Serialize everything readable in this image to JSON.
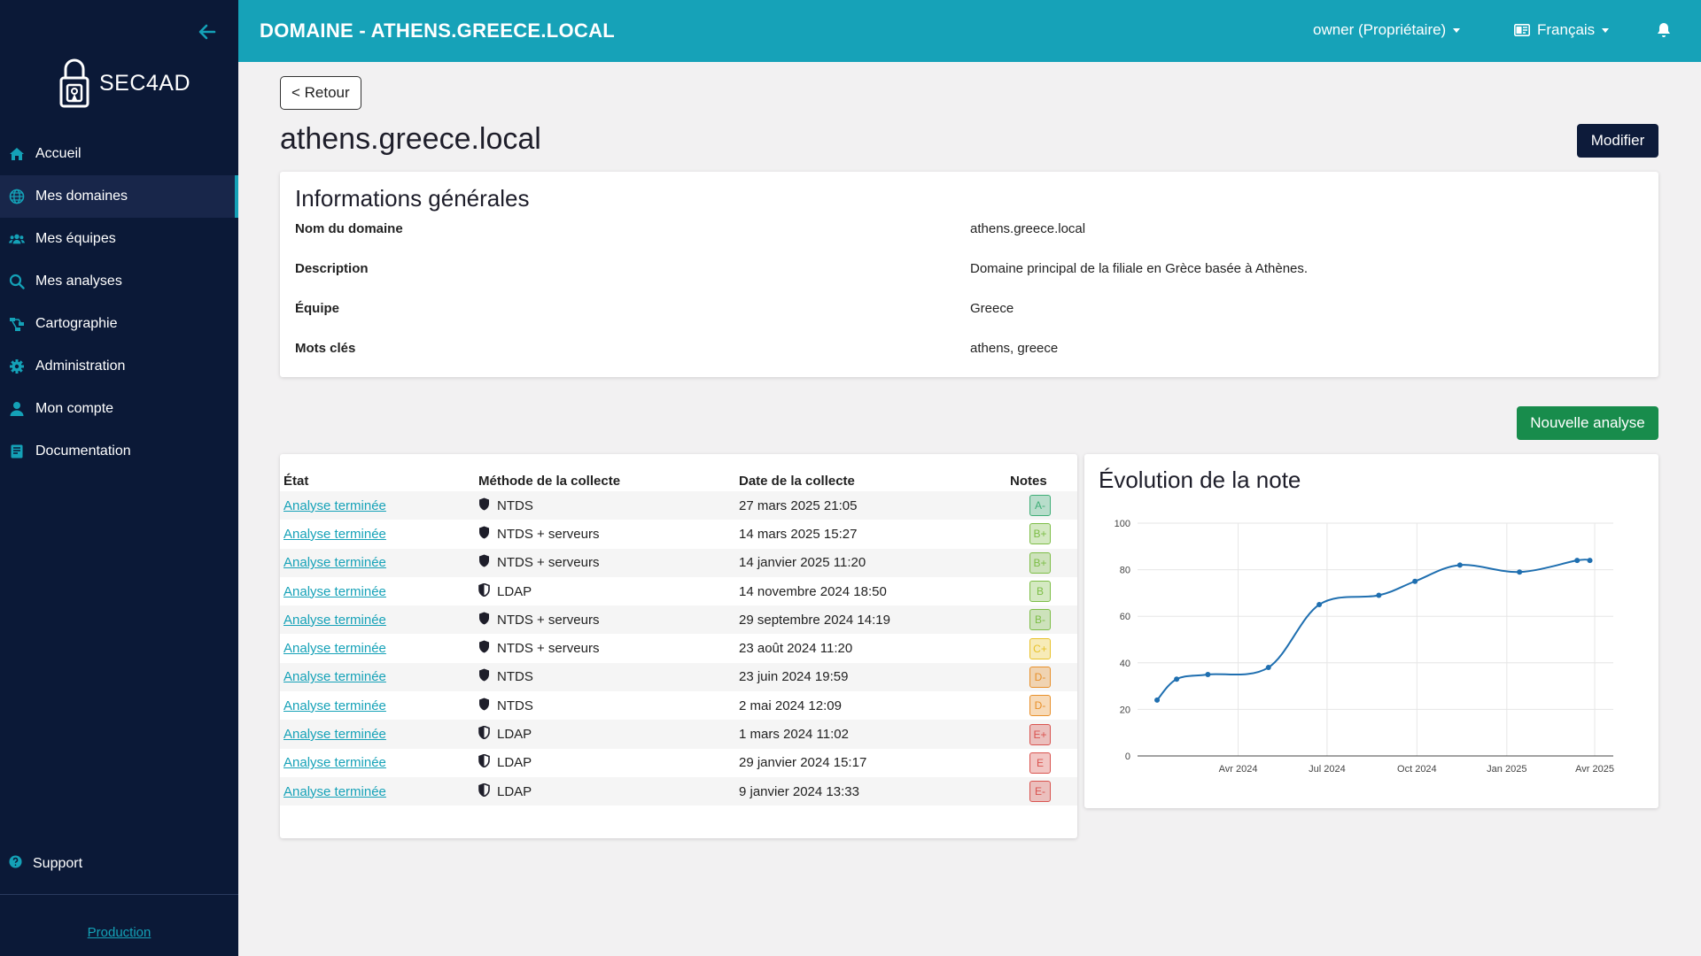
{
  "sidebar": {
    "logo_text": "SEC4AD",
    "items": [
      {
        "label": "Accueil",
        "icon": "home-icon"
      },
      {
        "label": "Mes domaines",
        "icon": "globe-icon",
        "active": true
      },
      {
        "label": "Mes équipes",
        "icon": "users-icon"
      },
      {
        "label": "Mes analyses",
        "icon": "search-icon"
      },
      {
        "label": "Cartographie",
        "icon": "sitemap-icon"
      },
      {
        "label": "Administration",
        "icon": "gear-icon"
      },
      {
        "label": "Mon compte",
        "icon": "user-icon"
      },
      {
        "label": "Documentation",
        "icon": "book-icon"
      }
    ],
    "support_label": "Support",
    "environment_label": "Production"
  },
  "topbar": {
    "title": "DOMAINE - ATHENS.GREECE.LOCAL",
    "user_label": "owner (Propriétaire)",
    "language_label": "Français"
  },
  "main": {
    "back_label": "< Retour",
    "page_title": "athens.greece.local",
    "edit_label": "Modifier",
    "new_analysis_label": "Nouvelle analyse"
  },
  "info": {
    "title": "Informations générales",
    "rows": [
      {
        "label": "Nom du domaine",
        "value": "athens.greece.local"
      },
      {
        "label": "Description",
        "value": "Domaine principal de la filiale en Grèce basée à Athènes."
      },
      {
        "label": "Équipe",
        "value": "Greece"
      },
      {
        "label": "Mots clés",
        "value": "athens, greece"
      }
    ]
  },
  "table": {
    "headers": [
      "État",
      "Méthode de la collecte",
      "Date de la collecte",
      "Notes"
    ],
    "rows": [
      {
        "state": "Analyse terminée",
        "method": "NTDS",
        "shield": "solid",
        "date": "27 mars 2025 21:05",
        "grade": "A-",
        "grade_color": "#3fae77"
      },
      {
        "state": "Analyse terminée",
        "method": "NTDS + serveurs",
        "shield": "solid",
        "date": "14 mars 2025 15:27",
        "grade": "B+",
        "grade_color": "#7dbd47"
      },
      {
        "state": "Analyse terminée",
        "method": "NTDS + serveurs",
        "shield": "solid",
        "date": "14 janvier 2025 11:20",
        "grade": "B+",
        "grade_color": "#7dbd47"
      },
      {
        "state": "Analyse terminée",
        "method": "LDAP",
        "shield": "half",
        "date": "14 novembre 2024 18:50",
        "grade": "B",
        "grade_color": "#7dbd47"
      },
      {
        "state": "Analyse terminée",
        "method": "NTDS + serveurs",
        "shield": "solid",
        "date": "29 septembre 2024 14:19",
        "grade": "B-",
        "grade_color": "#7dbd47"
      },
      {
        "state": "Analyse terminée",
        "method": "NTDS + serveurs",
        "shield": "solid",
        "date": "23 août 2024 11:20",
        "grade": "C+",
        "grade_color": "#e8c22a"
      },
      {
        "state": "Analyse terminée",
        "method": "NTDS",
        "shield": "solid",
        "date": "23 juin 2024 19:59",
        "grade": "D-",
        "grade_color": "#e8902a"
      },
      {
        "state": "Analyse terminée",
        "method": "NTDS",
        "shield": "solid",
        "date": "2 mai 2024 12:09",
        "grade": "D-",
        "grade_color": "#e8902a"
      },
      {
        "state": "Analyse terminée",
        "method": "LDAP",
        "shield": "half",
        "date": "1 mars 2024 11:02",
        "grade": "E+",
        "grade_color": "#d9534f"
      },
      {
        "state": "Analyse terminée",
        "method": "LDAP",
        "shield": "half",
        "date": "29 janvier 2024 15:17",
        "grade": "E",
        "grade_color": "#d9534f"
      },
      {
        "state": "Analyse terminée",
        "method": "LDAP",
        "shield": "half",
        "date": "9 janvier 2024 13:33",
        "grade": "E-",
        "grade_color": "#d9534f"
      }
    ]
  },
  "chart_data": {
    "type": "line",
    "title": "Évolution de la note",
    "x": [
      "2024-01-09",
      "2024-01-29",
      "2024-03-01",
      "2024-05-02",
      "2024-06-23",
      "2024-08-23",
      "2024-09-29",
      "2024-11-14",
      "2025-01-14",
      "2025-03-14",
      "2025-03-27"
    ],
    "y": [
      24,
      33,
      35,
      38,
      65,
      69,
      75,
      82,
      79,
      84,
      84
    ],
    "ylim": [
      0,
      100
    ],
    "yticks": [
      0,
      20,
      40,
      60,
      80,
      100
    ],
    "xticks": [
      {
        "date": "2024-04-01",
        "label": "Avr 2024"
      },
      {
        "date": "2024-07-01",
        "label": "Jul 2024"
      },
      {
        "date": "2024-10-01",
        "label": "Oct 2024"
      },
      {
        "date": "2025-01-01",
        "label": "Jan 2025"
      },
      {
        "date": "2025-04-01",
        "label": "Avr 2025"
      }
    ],
    "xlim": [
      "2023-12-20",
      "2025-04-20"
    ],
    "line_color": "#1f6fb0",
    "grid": true
  }
}
